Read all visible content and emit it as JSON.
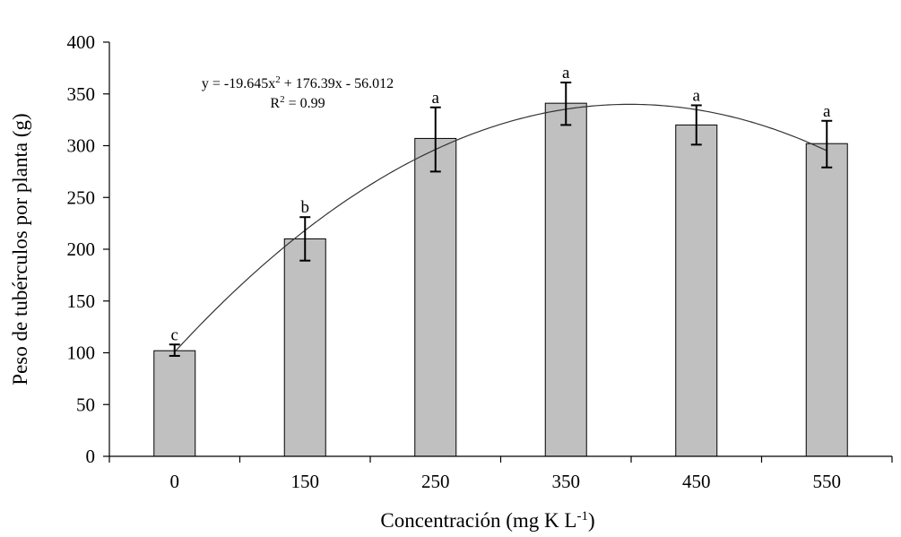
{
  "chart_data": {
    "type": "bar",
    "categories": [
      "0",
      "150",
      "250",
      "350",
      "450",
      "550"
    ],
    "values": [
      102,
      210,
      307,
      341,
      320,
      302
    ],
    "error_bars": [
      {
        "low": 97,
        "high": 108
      },
      {
        "low": 189,
        "high": 231
      },
      {
        "low": 275,
        "high": 337
      },
      {
        "low": 320,
        "high": 361
      },
      {
        "low": 301,
        "high": 339
      },
      {
        "low": 279,
        "high": 324
      }
    ],
    "significance_letters": [
      "c",
      "b",
      "a",
      "a",
      "a",
      "a"
    ],
    "xlabel": "Concentración (mg K L",
    "xlabel_superscript": "-1",
    "xlabel_suffix": ")",
    "ylabel": "Peso de tubérculos por planta (g)",
    "ylim": [
      0,
      400
    ],
    "yticks": [
      0,
      50,
      100,
      150,
      200,
      250,
      300,
      350,
      400
    ],
    "grid": false,
    "trendline": {
      "type": "polynomial-2",
      "a": -19.645,
      "b": 176.39,
      "c": -56.012,
      "equation_prefix": "y = -19.645x",
      "equation_exponent": "2",
      "equation_suffix": " + 176.39x - 56.012",
      "r2_prefix": "R",
      "r2_exponent": "2",
      "r2_suffix": " = 0.99"
    },
    "colors": {
      "bar_fill": "#c0c0c0",
      "bar_stroke": "#000000",
      "axis": "#000000",
      "trendline": "#333333"
    }
  }
}
